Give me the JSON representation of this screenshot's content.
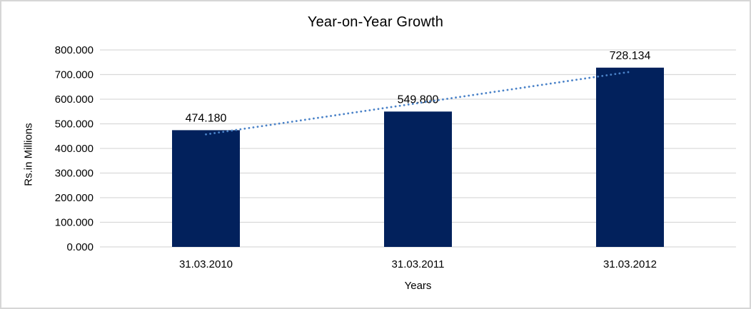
{
  "chart_data": {
    "type": "bar",
    "title": "Year-on-Year Growth",
    "xlabel": "Years",
    "ylabel": "Rs.in Millions",
    "categories": [
      "31.03.2010",
      "31.03.2011",
      "31.03.2012"
    ],
    "values": [
      474.18,
      549.8,
      728.134
    ],
    "data_labels": [
      "474.180",
      "549.800",
      "728.134"
    ],
    "ylim": [
      0,
      800
    ],
    "ytick_step": 100,
    "ytick_labels": [
      "0.000",
      "100.000",
      "200.000",
      "300.000",
      "400.000",
      "500.000",
      "600.000",
      "700.000",
      "800.000"
    ],
    "grid": true,
    "legend": "none",
    "bar_color": "#02215c",
    "gridline_color": "#d9d9d9",
    "text_color": "#000000",
    "trendline": {
      "type": "linear",
      "style": "dotted",
      "color": "#4a82c8"
    }
  }
}
